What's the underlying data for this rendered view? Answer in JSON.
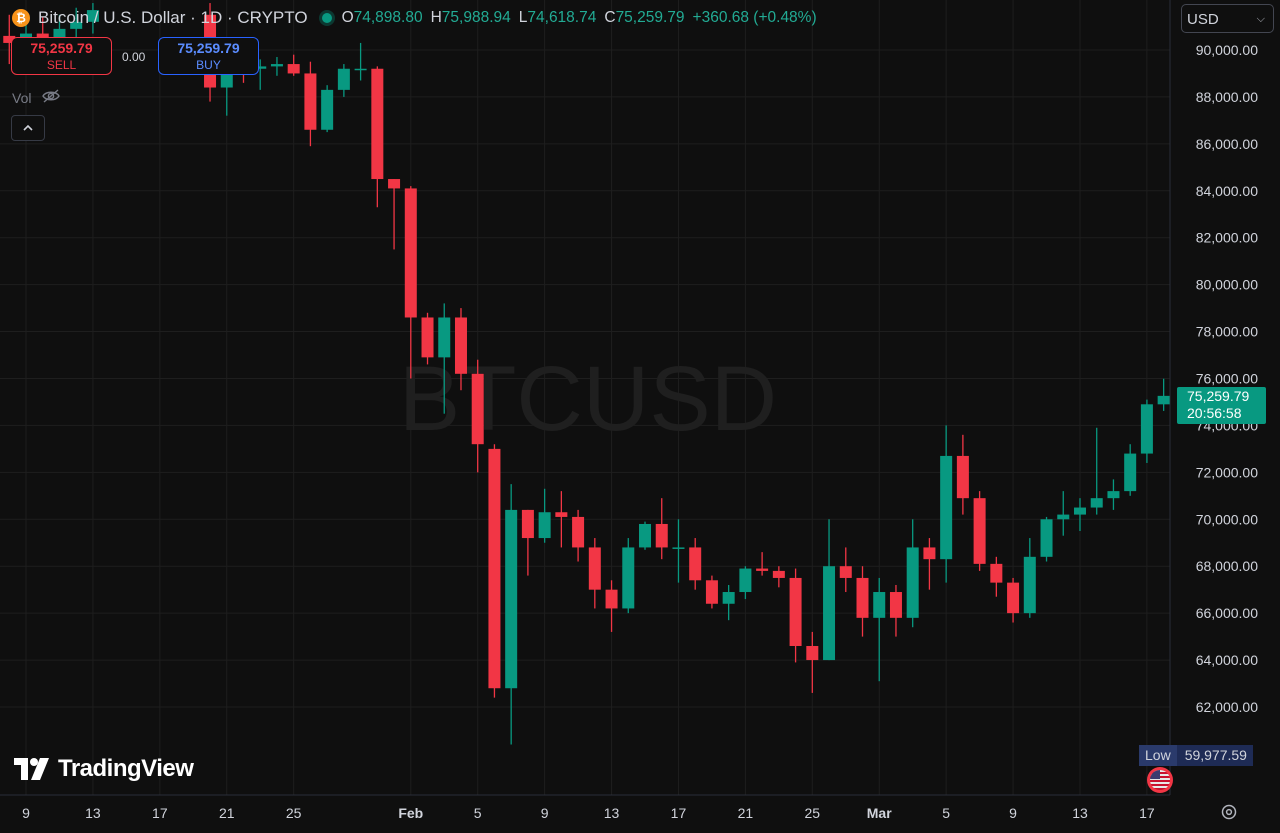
{
  "header": {
    "symbol_title": "Bitcoin / U.S. Dollar · 1D · CRYPTO",
    "badge_glyph": "₿",
    "open_label": "O",
    "open": "74,898.80",
    "high_label": "H",
    "high": "75,988.94",
    "low_label": "L",
    "low": "74,618.74",
    "close_label": "C",
    "close": "75,259.79",
    "change": "+360.68 (+0.48%)"
  },
  "trade": {
    "sell_price": "75,259.79",
    "sell_label": "SELL",
    "spread": "0.00",
    "buy_price": "75,259.79",
    "buy_label": "BUY"
  },
  "volume_label": "Vol",
  "currency": "USD",
  "price_tag": {
    "price": "75,259.79",
    "countdown": "20:56:58"
  },
  "low_tag": {
    "label": "Low",
    "value": "59,977.59"
  },
  "watermark": "BTCUSD",
  "brand": "TradingView",
  "colors": {
    "up": "#089981",
    "down": "#f23645",
    "background": "#0f0f0f",
    "grid": "#1e1e1e"
  },
  "chart_data": {
    "type": "candlestick",
    "title": "Bitcoin / U.S. Dollar · 1D · CRYPTO",
    "ylim": [
      60400,
      91000
    ],
    "y_ticks": [
      62000,
      64000,
      66000,
      68000,
      70000,
      72000,
      74000,
      76000,
      78000,
      80000,
      82000,
      84000,
      86000,
      88000,
      90000
    ],
    "x_ticks": [
      {
        "label": "9",
        "date": "2026-01-09"
      },
      {
        "label": "13",
        "date": "2026-01-13"
      },
      {
        "label": "17",
        "date": "2026-01-17"
      },
      {
        "label": "21",
        "date": "2026-01-21"
      },
      {
        "label": "25",
        "date": "2026-01-25"
      },
      {
        "label": "Feb",
        "date": "2026-02-01"
      },
      {
        "label": "5",
        "date": "2026-02-05"
      },
      {
        "label": "9",
        "date": "2026-02-09"
      },
      {
        "label": "13",
        "date": "2026-02-13"
      },
      {
        "label": "17",
        "date": "2026-02-17"
      },
      {
        "label": "21",
        "date": "2026-02-21"
      },
      {
        "label": "25",
        "date": "2026-02-25"
      },
      {
        "label": "Mar",
        "date": "2026-03-01"
      },
      {
        "label": "5",
        "date": "2026-03-05"
      },
      {
        "label": "9",
        "date": "2026-03-09"
      },
      {
        "label": "13",
        "date": "2026-03-13"
      },
      {
        "label": "17",
        "date": "2026-03-17"
      }
    ],
    "candles": [
      {
        "date": "2026-01-08",
        "o": 90600,
        "h": 91500,
        "l": 89400,
        "c": 90300
      },
      {
        "date": "2026-01-09",
        "o": 90300,
        "h": 91500,
        "l": 89600,
        "c": 90700
      },
      {
        "date": "2026-01-10",
        "o": 90700,
        "h": 91400,
        "l": 90100,
        "c": 90500
      },
      {
        "date": "2026-01-11",
        "o": 90500,
        "h": 91500,
        "l": 89800,
        "c": 90900
      },
      {
        "date": "2026-01-12",
        "o": 90900,
        "h": 91800,
        "l": 90400,
        "c": 91200
      },
      {
        "date": "2026-01-13",
        "o": 91200,
        "h": 92000,
        "l": 90700,
        "c": 91700
      },
      {
        "date": "2026-01-20",
        "o": 91500,
        "h": 92000,
        "l": 87800,
        "c": 88400
      },
      {
        "date": "2026-01-21",
        "o": 88400,
        "h": 89800,
        "l": 87200,
        "c": 89300
      },
      {
        "date": "2026-01-22",
        "o": 89300,
        "h": 89800,
        "l": 88600,
        "c": 89200
      },
      {
        "date": "2026-01-23",
        "o": 89200,
        "h": 89600,
        "l": 88300,
        "c": 89300
      },
      {
        "date": "2026-01-24",
        "o": 89300,
        "h": 89700,
        "l": 88900,
        "c": 89400
      },
      {
        "date": "2026-01-25",
        "o": 89400,
        "h": 89800,
        "l": 88900,
        "c": 89000
      },
      {
        "date": "2026-01-26",
        "o": 89000,
        "h": 89500,
        "l": 85900,
        "c": 86600
      },
      {
        "date": "2026-01-27",
        "o": 86600,
        "h": 88500,
        "l": 86500,
        "c": 88300
      },
      {
        "date": "2026-01-28",
        "o": 88300,
        "h": 89400,
        "l": 88000,
        "c": 89200
      },
      {
        "date": "2026-01-29",
        "o": 89200,
        "h": 90300,
        "l": 88700,
        "c": 89200
      },
      {
        "date": "2026-01-30",
        "o": 89200,
        "h": 89300,
        "l": 83300,
        "c": 84500
      },
      {
        "date": "2026-01-31",
        "o": 84500,
        "h": 84500,
        "l": 81500,
        "c": 84100
      },
      {
        "date": "2026-02-01",
        "o": 84100,
        "h": 84200,
        "l": 76000,
        "c": 78600
      },
      {
        "date": "2026-02-02",
        "o": 78600,
        "h": 78800,
        "l": 76600,
        "c": 76900
      },
      {
        "date": "2026-02-03",
        "o": 76900,
        "h": 79200,
        "l": 74500,
        "c": 78600
      },
      {
        "date": "2026-02-04",
        "o": 78600,
        "h": 79000,
        "l": 75500,
        "c": 76200
      },
      {
        "date": "2026-02-05",
        "o": 76200,
        "h": 76800,
        "l": 72000,
        "c": 73200
      },
      {
        "date": "2026-02-06",
        "o": 73000,
        "h": 73200,
        "l": 62400,
        "c": 62800
      },
      {
        "date": "2026-02-07",
        "o": 62800,
        "h": 71500,
        "l": 60400,
        "c": 70400
      },
      {
        "date": "2026-02-08",
        "o": 70400,
        "h": 70400,
        "l": 67600,
        "c": 69200
      },
      {
        "date": "2026-02-09",
        "o": 69200,
        "h": 71300,
        "l": 69000,
        "c": 70300
      },
      {
        "date": "2026-02-10",
        "o": 70300,
        "h": 71200,
        "l": 68800,
        "c": 70100
      },
      {
        "date": "2026-02-11",
        "o": 70100,
        "h": 70400,
        "l": 68200,
        "c": 68800
      },
      {
        "date": "2026-02-12",
        "o": 68800,
        "h": 69200,
        "l": 66200,
        "c": 67000
      },
      {
        "date": "2026-02-13",
        "o": 67000,
        "h": 67400,
        "l": 65200,
        "c": 66200
      },
      {
        "date": "2026-02-14",
        "o": 66200,
        "h": 69200,
        "l": 66000,
        "c": 68800
      },
      {
        "date": "2026-02-15",
        "o": 68800,
        "h": 69900,
        "l": 68700,
        "c": 69800
      },
      {
        "date": "2026-02-16",
        "o": 69800,
        "h": 70900,
        "l": 68300,
        "c": 68800
      },
      {
        "date": "2026-02-17",
        "o": 68800,
        "h": 70000,
        "l": 67300,
        "c": 68800
      },
      {
        "date": "2026-02-18",
        "o": 68800,
        "h": 69200,
        "l": 67000,
        "c": 67400
      },
      {
        "date": "2026-02-19",
        "o": 67400,
        "h": 67600,
        "l": 66200,
        "c": 66400
      },
      {
        "date": "2026-02-20",
        "o": 66400,
        "h": 67200,
        "l": 65700,
        "c": 66900
      },
      {
        "date": "2026-02-21",
        "o": 66900,
        "h": 68000,
        "l": 66600,
        "c": 67900
      },
      {
        "date": "2026-02-22",
        "o": 67900,
        "h": 68600,
        "l": 67600,
        "c": 67800
      },
      {
        "date": "2026-02-23",
        "o": 67800,
        "h": 68000,
        "l": 67100,
        "c": 67500
      },
      {
        "date": "2026-02-24",
        "o": 67500,
        "h": 67900,
        "l": 63900,
        "c": 64600
      },
      {
        "date": "2026-02-25",
        "o": 64600,
        "h": 65200,
        "l": 62600,
        "c": 64000
      },
      {
        "date": "2026-02-26",
        "o": 64000,
        "h": 70000,
        "l": 64000,
        "c": 68000
      },
      {
        "date": "2026-02-27",
        "o": 68000,
        "h": 68800,
        "l": 66900,
        "c": 67500
      },
      {
        "date": "2026-02-28",
        "o": 67500,
        "h": 68000,
        "l": 65000,
        "c": 65800
      },
      {
        "date": "2026-03-01",
        "o": 65800,
        "h": 67500,
        "l": 63100,
        "c": 66900
      },
      {
        "date": "2026-03-02",
        "o": 66900,
        "h": 67200,
        "l": 65000,
        "c": 65800
      },
      {
        "date": "2026-03-03",
        "o": 65800,
        "h": 70000,
        "l": 65400,
        "c": 68800
      },
      {
        "date": "2026-03-04",
        "o": 68800,
        "h": 69200,
        "l": 67000,
        "c": 68300
      },
      {
        "date": "2026-03-05",
        "o": 68300,
        "h": 74000,
        "l": 67300,
        "c": 72700
      },
      {
        "date": "2026-03-06",
        "o": 72700,
        "h": 73600,
        "l": 70200,
        "c": 70900
      },
      {
        "date": "2026-03-07",
        "o": 70900,
        "h": 71200,
        "l": 67800,
        "c": 68100
      },
      {
        "date": "2026-03-08",
        "o": 68100,
        "h": 68400,
        "l": 66700,
        "c": 67300
      },
      {
        "date": "2026-03-09",
        "o": 67300,
        "h": 67500,
        "l": 65600,
        "c": 66000
      },
      {
        "date": "2026-03-10",
        "o": 66000,
        "h": 69200,
        "l": 65800,
        "c": 68400
      },
      {
        "date": "2026-03-11",
        "o": 68400,
        "h": 70100,
        "l": 68200,
        "c": 70000
      },
      {
        "date": "2026-03-12",
        "o": 70000,
        "h": 71200,
        "l": 69300,
        "c": 70200
      },
      {
        "date": "2026-03-13",
        "o": 70200,
        "h": 70900,
        "l": 69500,
        "c": 70500
      },
      {
        "date": "2026-03-14",
        "o": 70500,
        "h": 73900,
        "l": 70200,
        "c": 70900
      },
      {
        "date": "2026-03-15",
        "o": 70900,
        "h": 71700,
        "l": 70400,
        "c": 71200
      },
      {
        "date": "2026-03-16",
        "o": 71200,
        "h": 73200,
        "l": 71000,
        "c": 72800
      },
      {
        "date": "2026-03-17",
        "o": 72800,
        "h": 75100,
        "l": 72400,
        "c": 74900
      },
      {
        "date": "2026-03-18",
        "o": 74898.8,
        "h": 75988.94,
        "l": 74618.74,
        "c": 75259.79
      }
    ]
  }
}
